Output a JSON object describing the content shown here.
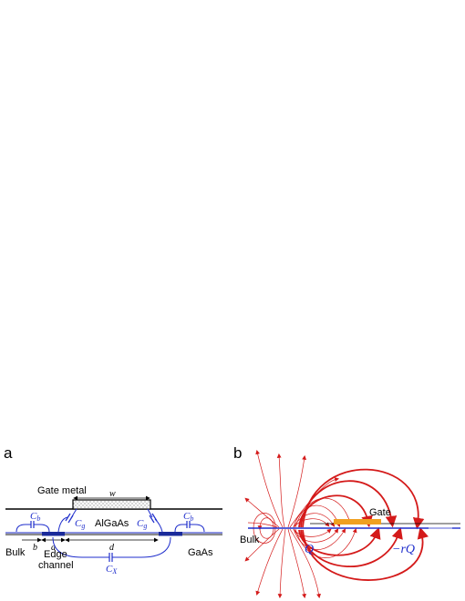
{
  "panel_a": {
    "panel_label": "a",
    "labels": {
      "gate_metal": "Gate metal",
      "w": "w",
      "algaas": "AlGaAs",
      "gaas": "GaAs",
      "bulk": "Bulk",
      "edge": "Edge",
      "channel": "channel",
      "b": "b",
      "a": "a",
      "d": "d"
    },
    "capacitors": {
      "cb_left": "C",
      "cb_right": "C",
      "cg_left": "C",
      "cg_right": "C",
      "cx": "C",
      "sub_b": "b",
      "sub_g": "g",
      "sub_x": "X"
    }
  },
  "panel_b": {
    "panel_label": "b",
    "labels": {
      "gate": "Gate",
      "bulk": "Bulk",
      "q": "Q",
      "neg_rq": "−rQ"
    }
  },
  "colors": {
    "black": "#000000",
    "blue": "#1f2ecc",
    "red": "#d41a1a",
    "gate_orange": "#f0a020",
    "gray": "#8a8a8a"
  }
}
